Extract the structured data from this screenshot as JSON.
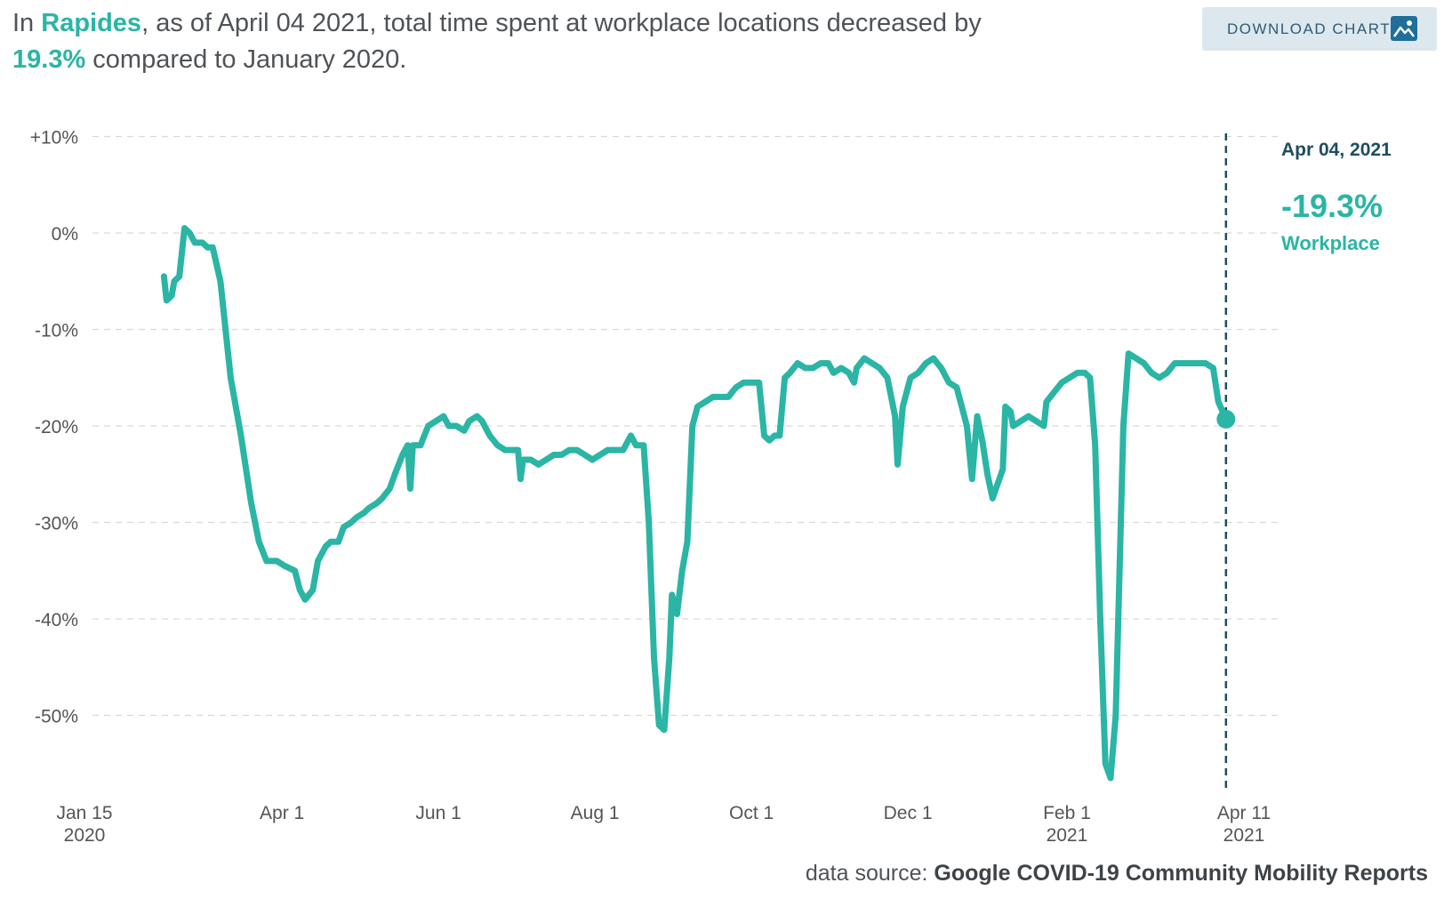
{
  "headline": {
    "p1": "In ",
    "location": "Rapides",
    "p2": ", as of April 04 2021, total time spent at workplace locations decreased by ",
    "percent": "19.3%",
    "p3": " compared to January 2020."
  },
  "download_button": {
    "label": "DOWNLOAD CHART",
    "icon": "image-icon"
  },
  "source": {
    "prefix": "data source:",
    "name": "Google COVID-19 Community Mobility Reports"
  },
  "colors": {
    "line": "#2ab5a5",
    "marker_line": "#1d4e5f",
    "grid": "#d9d9d9",
    "text": "#555555"
  },
  "chart_data": {
    "type": "line",
    "title": "",
    "xlabel": "",
    "ylabel": "",
    "ylim": [
      -58,
      11
    ],
    "xlim": [
      "2020-01-15",
      "2021-04-11"
    ],
    "grid": true,
    "y_ticks": [
      {
        "value": 10,
        "label": "+10%"
      },
      {
        "value": 0,
        "label": "0%"
      },
      {
        "value": -10,
        "label": "-10%"
      },
      {
        "value": -20,
        "label": "-20%"
      },
      {
        "value": -30,
        "label": "-30%"
      },
      {
        "value": -40,
        "label": "-40%"
      },
      {
        "value": -50,
        "label": "-50%"
      }
    ],
    "x_ticks": [
      {
        "date": "2020-01-15",
        "label": "Jan 15",
        "sub": "2020"
      },
      {
        "date": "2020-04-01",
        "label": "Apr 1",
        "sub": ""
      },
      {
        "date": "2020-06-01",
        "label": "Jun 1",
        "sub": ""
      },
      {
        "date": "2020-08-01",
        "label": "Aug 1",
        "sub": ""
      },
      {
        "date": "2020-10-01",
        "label": "Oct 1",
        "sub": ""
      },
      {
        "date": "2020-12-01",
        "label": "Dec 1",
        "sub": ""
      },
      {
        "date": "2021-02-01",
        "label": "Feb 1",
        "sub": "2021"
      },
      {
        "date": "2021-04-11",
        "label": "Apr 11",
        "sub": "2021"
      }
    ],
    "annotation": {
      "date": "2021-04-04",
      "date_label": "Apr 04, 2021",
      "value": -19.3,
      "value_label": "-19.3%",
      "series_label": "Workplace"
    },
    "series": [
      {
        "name": "Workplace",
        "points": [
          [
            "2020-02-15",
            -4.5
          ],
          [
            "2020-02-16",
            -7
          ],
          [
            "2020-02-18",
            -6.5
          ],
          [
            "2020-02-19",
            -5
          ],
          [
            "2020-02-21",
            -4.5
          ],
          [
            "2020-02-23",
            0.5
          ],
          [
            "2020-02-25",
            0
          ],
          [
            "2020-02-27",
            -1
          ],
          [
            "2020-03-01",
            -1
          ],
          [
            "2020-03-03",
            -1.5
          ],
          [
            "2020-03-05",
            -1.5
          ],
          [
            "2020-03-08",
            -5
          ],
          [
            "2020-03-12",
            -15
          ],
          [
            "2020-03-16",
            -21
          ],
          [
            "2020-03-20",
            -28
          ],
          [
            "2020-03-23",
            -32
          ],
          [
            "2020-03-26",
            -34
          ],
          [
            "2020-03-30",
            -34
          ],
          [
            "2020-04-02",
            -34.5
          ],
          [
            "2020-04-06",
            -35
          ],
          [
            "2020-04-08",
            -37
          ],
          [
            "2020-04-10",
            -38
          ],
          [
            "2020-04-13",
            -37
          ],
          [
            "2020-04-15",
            -34
          ],
          [
            "2020-04-18",
            -32.5
          ],
          [
            "2020-04-20",
            -32
          ],
          [
            "2020-04-23",
            -32
          ],
          [
            "2020-04-25",
            -30.5
          ],
          [
            "2020-04-28",
            -30
          ],
          [
            "2020-04-30",
            -29.5
          ],
          [
            "2020-05-03",
            -29
          ],
          [
            "2020-05-05",
            -28.5
          ],
          [
            "2020-05-08",
            -28
          ],
          [
            "2020-05-10",
            -27.5
          ],
          [
            "2020-05-13",
            -26.5
          ],
          [
            "2020-05-15",
            -25
          ],
          [
            "2020-05-18",
            -23
          ],
          [
            "2020-05-20",
            -22
          ],
          [
            "2020-05-21",
            -26.5
          ],
          [
            "2020-05-22",
            -22
          ],
          [
            "2020-05-25",
            -22
          ],
          [
            "2020-05-28",
            -20
          ],
          [
            "2020-05-31",
            -19.5
          ],
          [
            "2020-06-03",
            -19
          ],
          [
            "2020-06-05",
            -20
          ],
          [
            "2020-06-08",
            -20
          ],
          [
            "2020-06-11",
            -20.5
          ],
          [
            "2020-06-13",
            -19.5
          ],
          [
            "2020-06-16",
            -19
          ],
          [
            "2020-06-18",
            -19.5
          ],
          [
            "2020-06-21",
            -21
          ],
          [
            "2020-06-24",
            -22
          ],
          [
            "2020-06-27",
            -22.5
          ],
          [
            "2020-06-30",
            -22.5
          ],
          [
            "2020-07-02",
            -22.5
          ],
          [
            "2020-07-03",
            -25.5
          ],
          [
            "2020-07-04",
            -23.5
          ],
          [
            "2020-07-07",
            -23.5
          ],
          [
            "2020-07-10",
            -24
          ],
          [
            "2020-07-13",
            -23.5
          ],
          [
            "2020-07-16",
            -23
          ],
          [
            "2020-07-19",
            -23
          ],
          [
            "2020-07-22",
            -22.5
          ],
          [
            "2020-07-25",
            -22.5
          ],
          [
            "2020-07-28",
            -23
          ],
          [
            "2020-07-31",
            -23.5
          ],
          [
            "2020-08-03",
            -23
          ],
          [
            "2020-08-06",
            -22.5
          ],
          [
            "2020-08-09",
            -22.5
          ],
          [
            "2020-08-12",
            -22.5
          ],
          [
            "2020-08-15",
            -21
          ],
          [
            "2020-08-17",
            -22
          ],
          [
            "2020-08-20",
            -22
          ],
          [
            "2020-08-22",
            -30
          ],
          [
            "2020-08-24",
            -44
          ],
          [
            "2020-08-26",
            -51
          ],
          [
            "2020-08-28",
            -51.5
          ],
          [
            "2020-08-30",
            -44
          ],
          [
            "2020-08-31",
            -37.5
          ],
          [
            "2020-09-02",
            -39.5
          ],
          [
            "2020-09-04",
            -35
          ],
          [
            "2020-09-06",
            -32
          ],
          [
            "2020-09-08",
            -20
          ],
          [
            "2020-09-10",
            -18
          ],
          [
            "2020-09-13",
            -17.5
          ],
          [
            "2020-09-16",
            -17
          ],
          [
            "2020-09-19",
            -17
          ],
          [
            "2020-09-22",
            -17
          ],
          [
            "2020-09-25",
            -16
          ],
          [
            "2020-09-28",
            -15.5
          ],
          [
            "2020-10-01",
            -15.5
          ],
          [
            "2020-10-04",
            -15.5
          ],
          [
            "2020-10-06",
            -21
          ],
          [
            "2020-10-08",
            -21.5
          ],
          [
            "2020-10-10",
            -21
          ],
          [
            "2020-10-12",
            -21
          ],
          [
            "2020-10-14",
            -15
          ],
          [
            "2020-10-16",
            -14.5
          ],
          [
            "2020-10-19",
            -13.5
          ],
          [
            "2020-10-22",
            -14
          ],
          [
            "2020-10-25",
            -14
          ],
          [
            "2020-10-28",
            -13.5
          ],
          [
            "2020-10-31",
            -13.5
          ],
          [
            "2020-11-02",
            -14.5
          ],
          [
            "2020-11-05",
            -14
          ],
          [
            "2020-11-08",
            -14.5
          ],
          [
            "2020-11-10",
            -15.5
          ],
          [
            "2020-11-11",
            -14
          ],
          [
            "2020-11-14",
            -13
          ],
          [
            "2020-11-17",
            -13.5
          ],
          [
            "2020-11-20",
            -14
          ],
          [
            "2020-11-23",
            -15
          ],
          [
            "2020-11-26",
            -19
          ],
          [
            "2020-11-27",
            -24
          ],
          [
            "2020-11-29",
            -18
          ],
          [
            "2020-12-02",
            -15
          ],
          [
            "2020-12-05",
            -14.5
          ],
          [
            "2020-12-08",
            -13.5
          ],
          [
            "2020-12-11",
            -13
          ],
          [
            "2020-12-14",
            -14
          ],
          [
            "2020-12-17",
            -15.5
          ],
          [
            "2020-12-20",
            -16
          ],
          [
            "2020-12-22",
            -18
          ],
          [
            "2020-12-24",
            -20
          ],
          [
            "2020-12-26",
            -25.5
          ],
          [
            "2020-12-28",
            -19
          ],
          [
            "2020-12-30",
            -21.5
          ],
          [
            "2021-01-01",
            -25
          ],
          [
            "2021-01-03",
            -27.5
          ],
          [
            "2021-01-05",
            -26
          ],
          [
            "2021-01-07",
            -24.5
          ],
          [
            "2021-01-08",
            -18
          ],
          [
            "2021-01-10",
            -18.5
          ],
          [
            "2021-01-11",
            -20
          ],
          [
            "2021-01-14",
            -19.5
          ],
          [
            "2021-01-17",
            -19
          ],
          [
            "2021-01-20",
            -19.5
          ],
          [
            "2021-01-23",
            -20
          ],
          [
            "2021-01-24",
            -17.5
          ],
          [
            "2021-01-27",
            -16.5
          ],
          [
            "2021-01-30",
            -15.5
          ],
          [
            "2021-02-02",
            -15
          ],
          [
            "2021-02-05",
            -14.5
          ],
          [
            "2021-02-08",
            -14.5
          ],
          [
            "2021-02-10",
            -15
          ],
          [
            "2021-02-12",
            -22
          ],
          [
            "2021-02-14",
            -40
          ],
          [
            "2021-02-16",
            -55
          ],
          [
            "2021-02-18",
            -56.5
          ],
          [
            "2021-02-20",
            -50
          ],
          [
            "2021-02-23",
            -20
          ],
          [
            "2021-02-25",
            -12.5
          ],
          [
            "2021-02-28",
            -13
          ],
          [
            "2021-03-03",
            -13.5
          ],
          [
            "2021-03-06",
            -14.5
          ],
          [
            "2021-03-09",
            -15
          ],
          [
            "2021-03-12",
            -14.5
          ],
          [
            "2021-03-15",
            -13.5
          ],
          [
            "2021-03-18",
            -13.5
          ],
          [
            "2021-03-21",
            -13.5
          ],
          [
            "2021-03-24",
            -13.5
          ],
          [
            "2021-03-27",
            -13.5
          ],
          [
            "2021-03-30",
            -14
          ],
          [
            "2021-04-01",
            -17.5
          ],
          [
            "2021-04-04",
            -19.3
          ]
        ]
      }
    ]
  }
}
